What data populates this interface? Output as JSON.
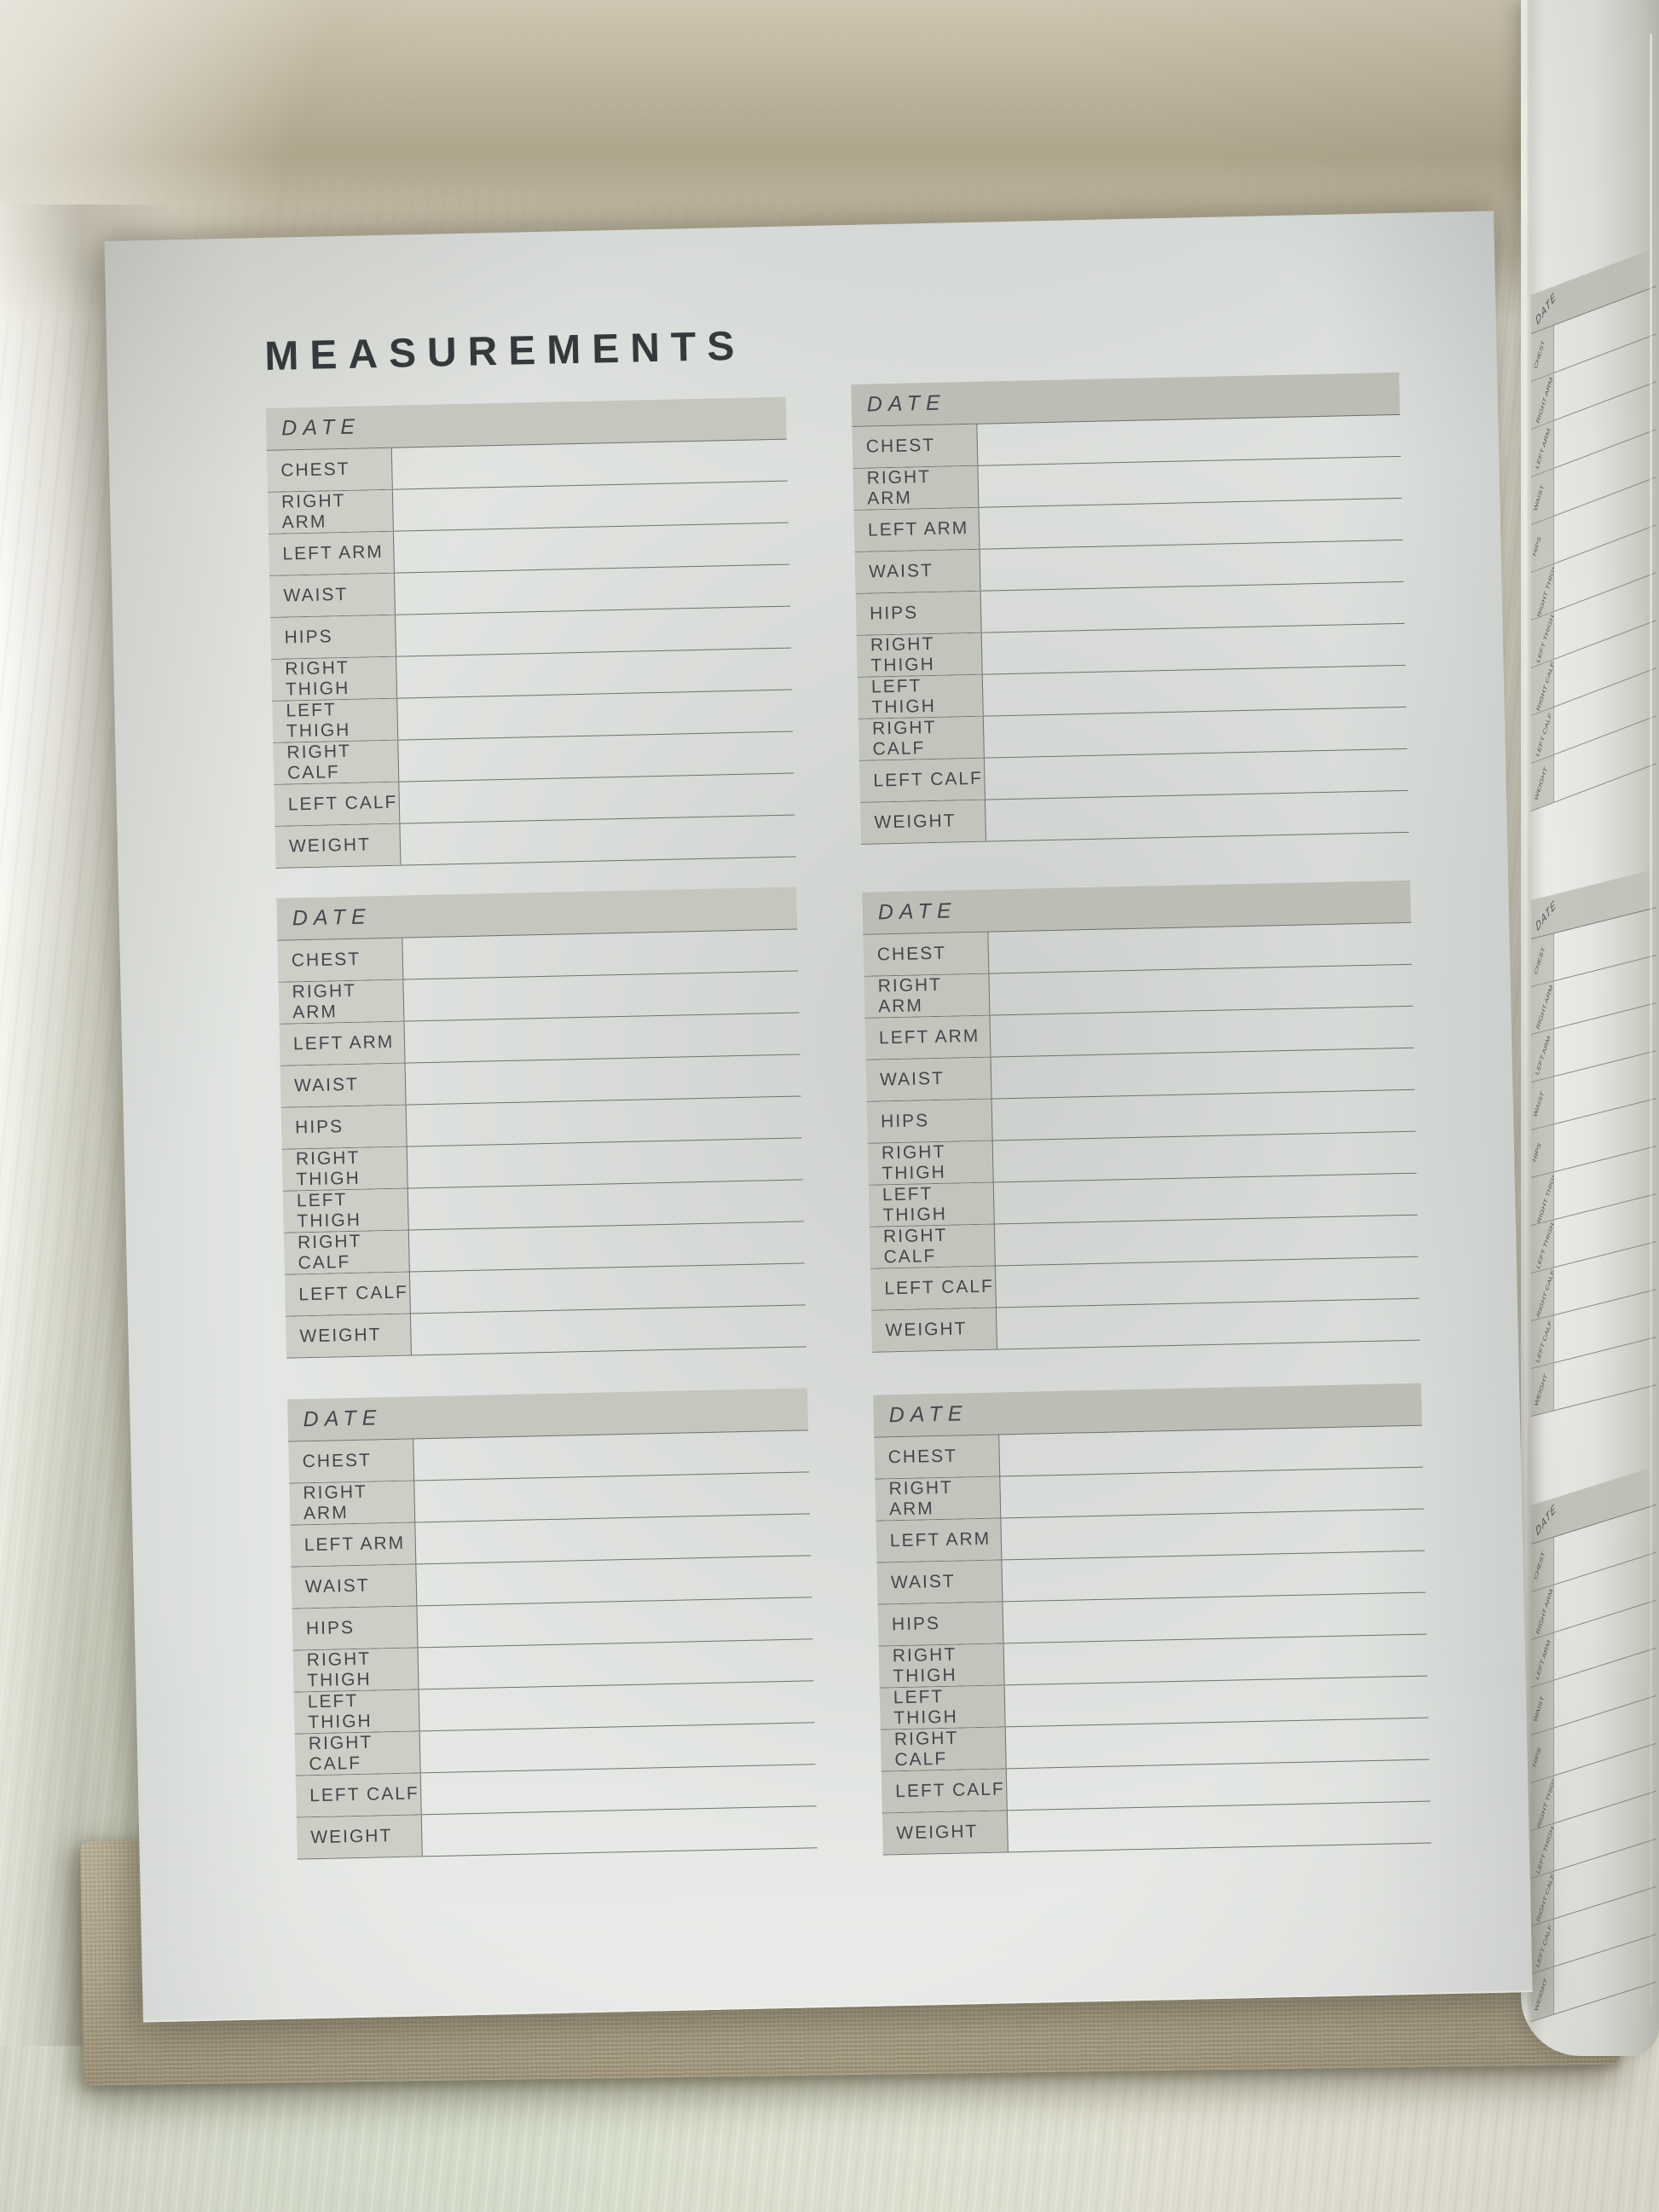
{
  "page": {
    "title": "MEASUREMENTS"
  },
  "measurement_table": {
    "header_label": "DATE",
    "header_value": "",
    "row_labels": [
      "CHEST",
      "RIGHT ARM",
      "LEFT ARM",
      "WAIST",
      "HIPS",
      "RIGHT THIGH",
      "LEFT THIGH",
      "RIGHT CALF",
      "LEFT CALF",
      "WEIGHT"
    ],
    "values": [
      "",
      "",
      "",
      "",
      "",
      "",
      "",
      "",
      "",
      ""
    ]
  },
  "main_page": {
    "tables_visible": 6,
    "columns": 2,
    "rows_per_table": 10
  },
  "edge_page": {
    "tables_visible": 3,
    "description_label": "DATE"
  },
  "colors": {
    "page_title_text": "#343a3c",
    "table_text": "#43474a",
    "table_header_fill": "#c5c7bf",
    "table_label_fill": "#cdcfc7",
    "table_line": "#6f736e",
    "page_paper": "#e3e6e2",
    "next_page_paper": "#e9eae5",
    "cover_linen": "#b2a78e",
    "fabric_ivory": "#e9e9dd",
    "fabric_shadow": "#a79d85"
  }
}
